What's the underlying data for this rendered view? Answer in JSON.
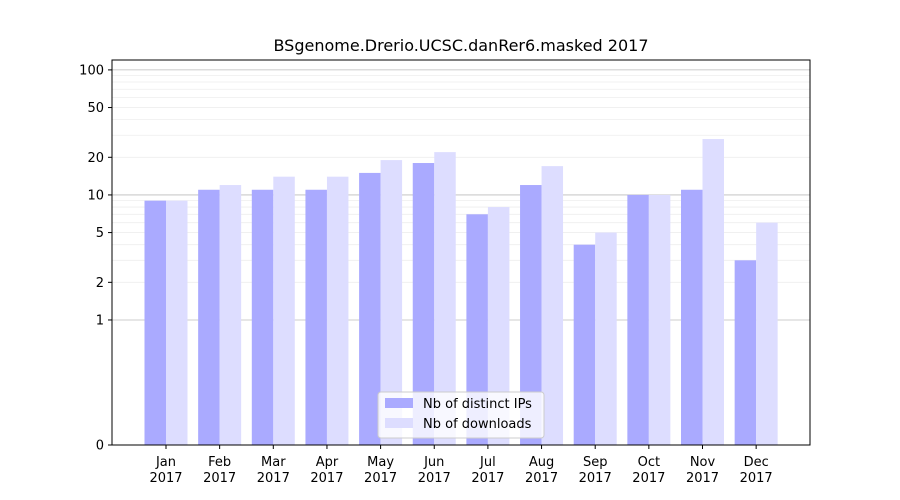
{
  "chart_data": {
    "type": "bar",
    "title": "BSgenome.Drerio.UCSC.danRer6.masked 2017",
    "xlabel": "",
    "ylabel": "",
    "categories": [
      "Jan\n2017",
      "Feb\n2017",
      "Mar\n2017",
      "Apr\n2017",
      "May\n2017",
      "Jun\n2017",
      "Jul\n2017",
      "Aug\n2017",
      "Sep\n2017",
      "Oct\n2017",
      "Nov\n2017",
      "Dec\n2017"
    ],
    "series": [
      {
        "name": "Nb of distinct IPs",
        "color": "#aaaaff",
        "values": [
          9,
          11,
          11,
          11,
          15,
          18,
          7,
          12,
          4,
          10,
          11,
          3
        ]
      },
      {
        "name": "Nb of downloads",
        "color": "#ddddff",
        "values": [
          9,
          12,
          14,
          14,
          19,
          22,
          8,
          17,
          5,
          10,
          28,
          6
        ]
      }
    ],
    "y_scale": "symlog",
    "ylim": [
      0,
      120
    ],
    "yticks": [
      0,
      1,
      2,
      5,
      10,
      20,
      50,
      100
    ],
    "grid": true,
    "legend_position": "lower center"
  }
}
